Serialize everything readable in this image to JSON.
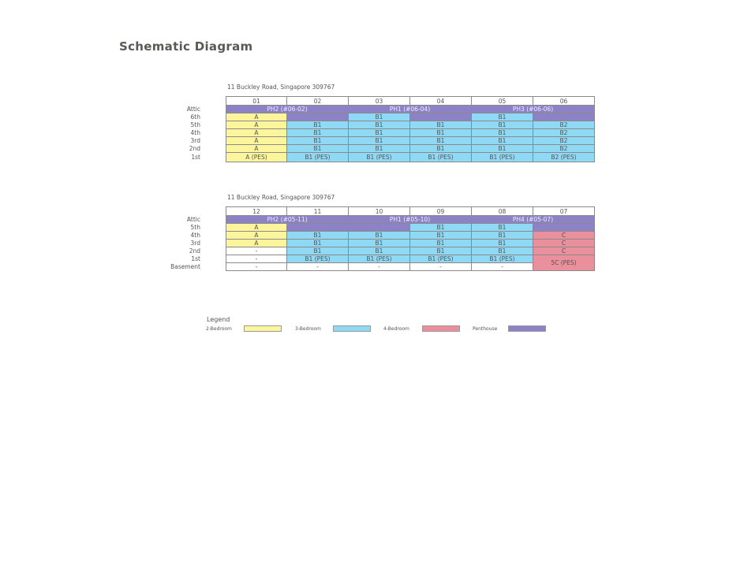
{
  "title": "Schematic Diagram",
  "blocks": [
    {
      "address": "11 Buckley Road, Singapore 309767",
      "columns": [
        "01",
        "02",
        "03",
        "04",
        "05",
        "06"
      ],
      "rows": [
        {
          "floor": "Attic",
          "cells": [
            {
              "text": "PH2 (#06-02)",
              "span": 2,
              "type": "p"
            },
            {
              "text": "PH1 (#06-04)",
              "span": 2,
              "type": "p"
            },
            {
              "text": "PH3 (#06-06)",
              "span": 2,
              "type": "p"
            }
          ]
        },
        {
          "floor": "6th",
          "cells": [
            {
              "text": "A",
              "span": 1,
              "type": "y"
            },
            {
              "text": "",
              "span": 1,
              "type": "p"
            },
            {
              "text": "B1",
              "span": 1,
              "type": "b"
            },
            {
              "text": "",
              "span": 1,
              "type": "p"
            },
            {
              "text": "B1",
              "span": 1,
              "type": "b"
            },
            {
              "text": "",
              "span": 1,
              "type": "p"
            }
          ]
        },
        {
          "floor": "5th",
          "cells": [
            {
              "text": "A",
              "span": 1,
              "type": "y"
            },
            {
              "text": "B1",
              "span": 1,
              "type": "b"
            },
            {
              "text": "B1",
              "span": 1,
              "type": "b"
            },
            {
              "text": "B1",
              "span": 1,
              "type": "b"
            },
            {
              "text": "B1",
              "span": 1,
              "type": "b"
            },
            {
              "text": "B2",
              "span": 1,
              "type": "b"
            }
          ]
        },
        {
          "floor": "4th",
          "cells": [
            {
              "text": "A",
              "span": 1,
              "type": "y"
            },
            {
              "text": "B1",
              "span": 1,
              "type": "b"
            },
            {
              "text": "B1",
              "span": 1,
              "type": "b"
            },
            {
              "text": "B1",
              "span": 1,
              "type": "b"
            },
            {
              "text": "B1",
              "span": 1,
              "type": "b"
            },
            {
              "text": "B2",
              "span": 1,
              "type": "b"
            }
          ]
        },
        {
          "floor": "3rd",
          "cells": [
            {
              "text": "A",
              "span": 1,
              "type": "y"
            },
            {
              "text": "B1",
              "span": 1,
              "type": "b"
            },
            {
              "text": "B1",
              "span": 1,
              "type": "b"
            },
            {
              "text": "B1",
              "span": 1,
              "type": "b"
            },
            {
              "text": "B1",
              "span": 1,
              "type": "b"
            },
            {
              "text": "B2",
              "span": 1,
              "type": "b"
            }
          ]
        },
        {
          "floor": "2nd",
          "cells": [
            {
              "text": "A",
              "span": 1,
              "type": "y"
            },
            {
              "text": "B1",
              "span": 1,
              "type": "b"
            },
            {
              "text": "B1",
              "span": 1,
              "type": "b"
            },
            {
              "text": "B1",
              "span": 1,
              "type": "b"
            },
            {
              "text": "B1",
              "span": 1,
              "type": "b"
            },
            {
              "text": "B2",
              "span": 1,
              "type": "b"
            }
          ]
        },
        {
          "floor": "1st",
          "tall": true,
          "cells": [
            {
              "text": "A (PES)",
              "span": 1,
              "type": "y"
            },
            {
              "text": "B1 (PES)",
              "span": 1,
              "type": "b"
            },
            {
              "text": "B1 (PES)",
              "span": 1,
              "type": "b"
            },
            {
              "text": "B1 (PES)",
              "span": 1,
              "type": "b"
            },
            {
              "text": "B1 (PES)",
              "span": 1,
              "type": "b"
            },
            {
              "text": "B2 (PES)",
              "span": 1,
              "type": "b"
            }
          ]
        }
      ]
    },
    {
      "address": "11 Buckley Road, Singapore 309767",
      "columns": [
        "12",
        "11",
        "10",
        "09",
        "08",
        "07"
      ],
      "rows": [
        {
          "floor": "Attic",
          "cells": [
            {
              "text": "PH2 (#05-11)",
              "span": 2,
              "type": "p"
            },
            {
              "text": "PH1 (#05-10)",
              "span": 2,
              "type": "p"
            },
            {
              "text": "PH4 (#05-07)",
              "span": 2,
              "type": "p"
            }
          ]
        },
        {
          "floor": "5th",
          "cells": [
            {
              "text": "A",
              "span": 1,
              "type": "y"
            },
            {
              "text": "",
              "span": 1,
              "type": "p"
            },
            {
              "text": "",
              "span": 1,
              "type": "p"
            },
            {
              "text": "B1",
              "span": 1,
              "type": "b"
            },
            {
              "text": "B1",
              "span": 1,
              "type": "b"
            },
            {
              "text": "",
              "span": 1,
              "type": "p"
            }
          ]
        },
        {
          "floor": "4th",
          "cells": [
            {
              "text": "A",
              "span": 1,
              "type": "y"
            },
            {
              "text": "B1",
              "span": 1,
              "type": "b"
            },
            {
              "text": "B1",
              "span": 1,
              "type": "b"
            },
            {
              "text": "B1",
              "span": 1,
              "type": "b"
            },
            {
              "text": "B1",
              "span": 1,
              "type": "b"
            },
            {
              "text": "C",
              "span": 1,
              "type": "r"
            }
          ]
        },
        {
          "floor": "3rd",
          "cells": [
            {
              "text": "A",
              "span": 1,
              "type": "y"
            },
            {
              "text": "B1",
              "span": 1,
              "type": "b"
            },
            {
              "text": "B1",
              "span": 1,
              "type": "b"
            },
            {
              "text": "B1",
              "span": 1,
              "type": "b"
            },
            {
              "text": "B1",
              "span": 1,
              "type": "b"
            },
            {
              "text": "C",
              "span": 1,
              "type": "r"
            }
          ]
        },
        {
          "floor": "2nd",
          "cells": [
            {
              "text": "-",
              "span": 1,
              "type": "w"
            },
            {
              "text": "B1",
              "span": 1,
              "type": "b"
            },
            {
              "text": "B1",
              "span": 1,
              "type": "b"
            },
            {
              "text": "B1",
              "span": 1,
              "type": "b"
            },
            {
              "text": "B1",
              "span": 1,
              "type": "b"
            },
            {
              "text": "C",
              "span": 1,
              "type": "r"
            }
          ]
        },
        {
          "floor": "1st",
          "cells": [
            {
              "text": "-",
              "span": 1,
              "type": "w"
            },
            {
              "text": "B1 (PES)",
              "span": 1,
              "type": "b"
            },
            {
              "text": "B1 (PES)",
              "span": 1,
              "type": "b"
            },
            {
              "text": "B1 (PES)",
              "span": 1,
              "type": "b"
            },
            {
              "text": "B1 (PES)",
              "span": 1,
              "type": "b"
            },
            {
              "text": "5C (PES)",
              "span": 1,
              "type": "r",
              "rowspan": 2
            }
          ]
        },
        {
          "floor": "Basement",
          "cells": [
            {
              "text": "-",
              "span": 1,
              "type": "w"
            },
            {
              "text": "-",
              "span": 1,
              "type": "w"
            },
            {
              "text": "-",
              "span": 1,
              "type": "w"
            },
            {
              "text": "-",
              "span": 1,
              "type": "w"
            },
            {
              "text": "-",
              "span": 1,
              "type": "w"
            }
          ]
        }
      ]
    }
  ],
  "legend": {
    "title": "Legend",
    "items": [
      {
        "label": "2-Bedroom",
        "color": "#fdf59b"
      },
      {
        "label": "3-Bedroom",
        "color": "#8fd9f4"
      },
      {
        "label": "4-Bedroom",
        "color": "#e9909c"
      },
      {
        "label": "Penthouse",
        "color": "#8d82c6"
      }
    ]
  }
}
